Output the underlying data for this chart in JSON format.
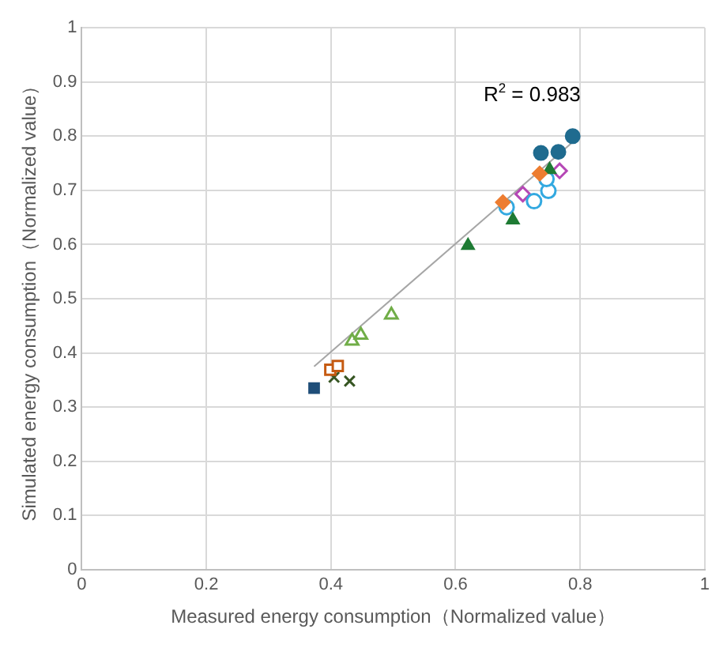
{
  "chart_data": {
    "type": "scatter",
    "xlabel": "Measured energy consumption（Normalized value）",
    "ylabel": "Simulated energy consumption（Normalized value）",
    "annotations": [
      "R$^{2}$ = 0.983"
    ],
    "xlim": [
      0,
      1
    ],
    "xticks": [
      0,
      0.2,
      0.4,
      0.6,
      0.8,
      1
    ],
    "ylim": [
      0,
      1
    ],
    "yticks": [
      0,
      0.1,
      0.2,
      0.3,
      0.4,
      0.5,
      0.6,
      0.7,
      0.8,
      0.9,
      1
    ],
    "grid": true,
    "legend": false,
    "series": [
      {
        "color": "#1f4e79",
        "marker": "square",
        "x": [
          0.373
        ],
        "values": [
          0.335
        ]
      },
      {
        "color": "#c55a11",
        "marker": "square",
        "x": [
          0.399,
          0.411
        ],
        "values": [
          0.369,
          0.376
        ]
      },
      {
        "color": "#375623",
        "marker": "cross",
        "x": [
          0.405,
          0.43
        ],
        "values": [
          0.355,
          0.348
        ]
      },
      {
        "color": "#70ad47",
        "marker": "triangle",
        "x": [
          0.434,
          0.448,
          0.497
        ],
        "values": [
          0.422,
          0.433,
          0.47
        ]
      },
      {
        "color": "#1f6b8f",
        "marker": "circle",
        "x": [
          0.737,
          0.765,
          0.788
        ],
        "values": [
          0.769,
          0.771,
          0.8
        ]
      },
      {
        "color": "#ed7d31",
        "marker": "diamond",
        "x": [
          0.676,
          0.735
        ],
        "values": [
          0.678,
          0.731
        ]
      },
      {
        "color": "#1e7b34",
        "marker": "triangle",
        "x": [
          0.62,
          0.692,
          0.751
        ],
        "values": [
          0.598,
          0.645,
          0.738
        ]
      },
      {
        "color": "#33a9e0",
        "marker": "circle",
        "x": [
          0.682,
          0.726,
          0.749,
          0.746
        ],
        "values": [
          0.669,
          0.68,
          0.699,
          0.721
        ]
      },
      {
        "color": "#b547b5",
        "marker": "diamond",
        "x": [
          0.708,
          0.76,
          0.767
        ],
        "values": [
          0.693,
          null,
          0.736
        ]
      },
      {
        "type": "line",
        "color": "#a6a6a6",
        "marker": "none",
        "x": [
          0.373,
          0.795
        ],
        "values": [
          0.375,
          0.796
        ]
      }
    ]
  }
}
